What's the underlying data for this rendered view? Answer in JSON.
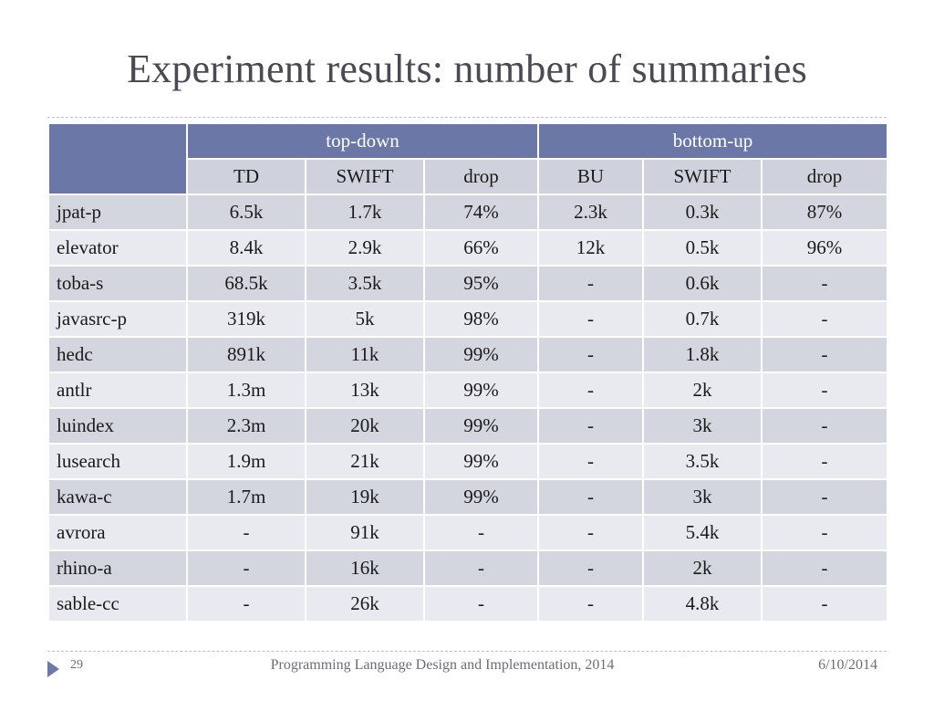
{
  "slide": {
    "title": "Experiment results: number of summaries"
  },
  "table": {
    "groups": [
      "top-down",
      "bottom-up"
    ],
    "subheaders": [
      "TD",
      "SWIFT",
      "drop",
      "BU",
      "SWIFT",
      "drop"
    ],
    "rows": [
      [
        "jpat-p",
        "6.5k",
        "1.7k",
        "74%",
        "2.3k",
        "0.3k",
        "87%"
      ],
      [
        "elevator",
        "8.4k",
        "2.9k",
        "66%",
        "12k",
        "0.5k",
        "96%"
      ],
      [
        "toba-s",
        "68.5k",
        "3.5k",
        "95%",
        "-",
        "0.6k",
        "-"
      ],
      [
        "javasrc-p",
        "319k",
        "5k",
        "98%",
        "-",
        "0.7k",
        "-"
      ],
      [
        "hedc",
        "891k",
        "11k",
        "99%",
        "-",
        "1.8k",
        "-"
      ],
      [
        "antlr",
        "1.3m",
        "13k",
        "99%",
        "-",
        "2k",
        "-"
      ],
      [
        "luindex",
        "2.3m",
        "20k",
        "99%",
        "-",
        "3k",
        "-"
      ],
      [
        "lusearch",
        "1.9m",
        "21k",
        "99%",
        "-",
        "3.5k",
        "-"
      ],
      [
        "kawa-c",
        "1.7m",
        "19k",
        "99%",
        "-",
        "3k",
        "-"
      ],
      [
        "avrora",
        "-",
        "91k",
        "-",
        "-",
        "5.4k",
        "-"
      ],
      [
        "rhino-a",
        "-",
        "16k",
        "-",
        "-",
        "2k",
        "-"
      ],
      [
        "sable-cc",
        "-",
        "26k",
        "-",
        "-",
        "4.8k",
        "-"
      ]
    ]
  },
  "footer": {
    "page_number": "29",
    "conference": "Programming Language Design and Implementation, 2014",
    "date": "6/10/2014",
    "arrow_icon": "triangle-right-icon",
    "accent_color": "#6b77a6"
  }
}
